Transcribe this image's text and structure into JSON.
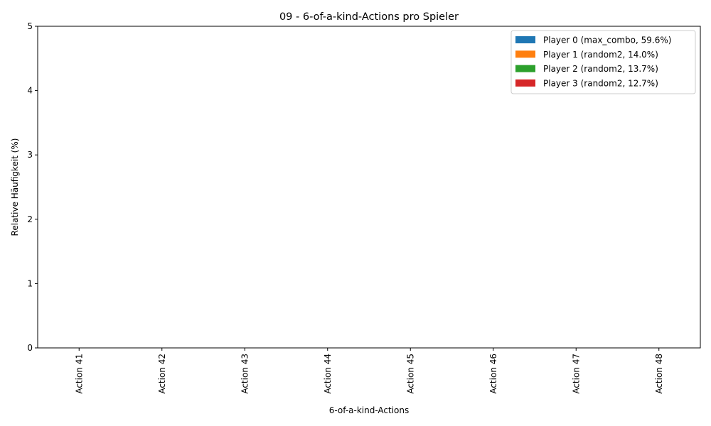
{
  "chart_data": {
    "type": "bar",
    "title": "09 - 6-of-a-kind-Actions pro Spieler",
    "xlabel": "6-of-a-kind-Actions",
    "ylabel": "Relative Häufigkeit (%)",
    "categories": [
      "Action 41",
      "Action 42",
      "Action 43",
      "Action 44",
      "Action 45",
      "Action 46",
      "Action 47",
      "Action 48"
    ],
    "ylim": [
      0,
      5
    ],
    "yticks": [
      "0",
      "1",
      "2",
      "3",
      "4",
      "5"
    ],
    "grid": false,
    "legend_position": "top-right",
    "series": [
      {
        "name": "Player 0 (max_combo, 59.6%)",
        "color": "#1f77b4",
        "values": [
          0,
          0,
          0,
          0,
          0,
          0,
          0,
          0
        ]
      },
      {
        "name": "Player 1 (random2, 14.0%)",
        "color": "#ff7f0e",
        "values": [
          0,
          0,
          0,
          0,
          0,
          0,
          0,
          0
        ]
      },
      {
        "name": "Player 2 (random2, 13.7%)",
        "color": "#2ca02c",
        "values": [
          0,
          0,
          0,
          0,
          0,
          0,
          0,
          0
        ]
      },
      {
        "name": "Player 3 (random2, 12.7%)",
        "color": "#d62728",
        "values": [
          0,
          0,
          0,
          0,
          0,
          0,
          0,
          0
        ]
      }
    ]
  }
}
